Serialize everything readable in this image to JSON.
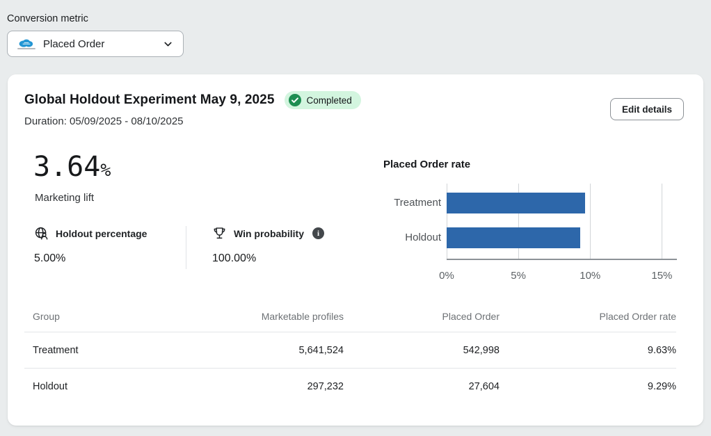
{
  "page": {
    "background": "#e9eced"
  },
  "metric_selector": {
    "label": "Conversion metric",
    "selected_option": "Placed Order",
    "icon": "cloud-logo"
  },
  "experiment": {
    "title": "Global Holdout Experiment May 9, 2025",
    "status": "Completed",
    "duration": "Duration: 05/09/2025 - 08/10/2025",
    "edit_button_label": "Edit details",
    "marketing_lift": {
      "value": "3.64",
      "unit": "%",
      "label": "Marketing lift"
    },
    "stats": [
      {
        "icon": "globe-user-icon",
        "label": "Holdout percentage",
        "value": "5.00%"
      },
      {
        "icon": "trophy-icon",
        "label": "Win probability",
        "value": "100.00%",
        "has_info_icon": true
      }
    ]
  },
  "chart_data": {
    "type": "bar",
    "orientation": "horizontal",
    "title": "Placed Order rate",
    "categories": [
      "Treatment",
      "Holdout"
    ],
    "values": [
      9.63,
      9.29
    ],
    "unit": "%",
    "xlim": [
      0,
      16
    ],
    "xticks": [
      "0%",
      "5%",
      "10%",
      "15%"
    ],
    "xtick_values": [
      0,
      5,
      10,
      15
    ],
    "bar_color": "#2d67aa",
    "grid": true,
    "legend": false
  },
  "table": {
    "headers": [
      "Group",
      "Marketable profiles",
      "Placed Order",
      "Placed Order rate"
    ],
    "rows": [
      [
        "Treatment",
        "5,641,524",
        "542,998",
        "9.63%"
      ],
      [
        "Holdout",
        "297,232",
        "27,604",
        "9.29%"
      ]
    ]
  },
  "colors": {
    "accent_blue": "#2d67aa",
    "badge_bg": "#d3f5df",
    "badge_check": "#1e8e52",
    "button_border": "#8c9196"
  }
}
